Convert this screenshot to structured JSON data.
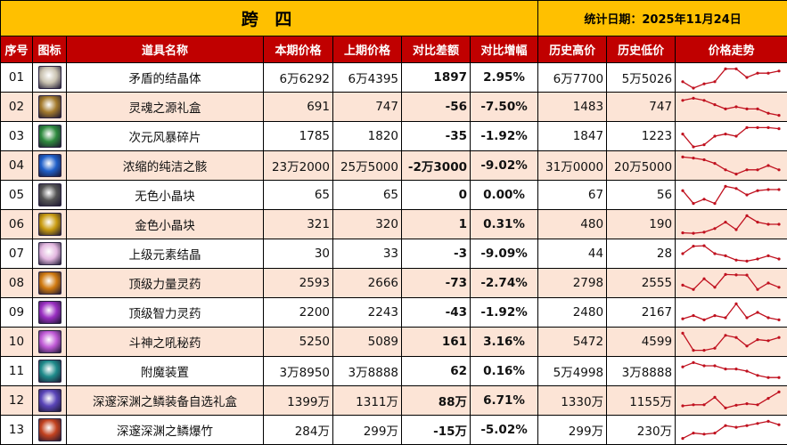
{
  "title": "跨 四",
  "stat_date": "统计日期：2025年11月24日",
  "columns": [
    "序号",
    "图标",
    "道具名称",
    "本期价格",
    "上期价格",
    "对比差额",
    "对比增幅",
    "历史高价",
    "历史低价",
    "价格走势"
  ],
  "colors": {
    "title_bg": "#FFC000",
    "header_bg": "#C00000",
    "alt_row_bg": "#FCE4D6",
    "up": "#E0201F",
    "down": "#1FA34A",
    "spark": "#C0111F"
  },
  "rows": [
    {
      "idx": "01",
      "icon": "crystal-icon",
      "icon_color": "#c9c2b0",
      "name": "矛盾的结晶体",
      "cur": "6万6292",
      "prev": "6万4395",
      "diff": "1897",
      "pct": "2.95%",
      "trend": "up",
      "high": "6万7700",
      "low": "5万5026",
      "spark": [
        7,
        10,
        8,
        7,
        1,
        1,
        5,
        3,
        3,
        2
      ]
    },
    {
      "idx": "02",
      "icon": "gift-box-icon",
      "icon_color": "#a37a2c",
      "name": "灵魂之源礼盒",
      "cur": "691",
      "prev": "747",
      "diff": "-56",
      "pct": "-7.50%",
      "trend": "down",
      "high": "1483",
      "low": "747",
      "spark": [
        2,
        1,
        2,
        4,
        6,
        5,
        6,
        6,
        8,
        9
      ]
    },
    {
      "idx": "03",
      "icon": "shard-icon",
      "icon_color": "#2e8a3e",
      "name": "次元风暴碎片",
      "cur": "1785",
      "prev": "1820",
      "diff": "-35",
      "pct": "-1.92%",
      "trend": "down",
      "high": "1847",
      "low": "1223",
      "spark": [
        4,
        10,
        9,
        5,
        4,
        5,
        1,
        1,
        1,
        1.5
      ]
    },
    {
      "idx": "04",
      "icon": "orb-icon",
      "icon_color": "#1f5fc9",
      "name": "浓缩的纯洁之骸",
      "cur": "23万2000",
      "prev": "25万5000",
      "diff": "-2万3000",
      "pct": "-9.02%",
      "trend": "down",
      "high": "31万0000",
      "low": "20万5000",
      "spark": [
        1,
        1.5,
        2.3,
        4,
        7,
        9,
        7,
        7,
        5,
        7
      ]
    },
    {
      "idx": "05",
      "icon": "gray-cube-icon",
      "icon_color": "#555555",
      "name": "无色小晶块",
      "cur": "65",
      "prev": "65",
      "diff": "0",
      "pct": "0.00%",
      "trend": "up",
      "high": "67",
      "low": "56",
      "spark": [
        3,
        9,
        7,
        9,
        1,
        2,
        5,
        3,
        2.5,
        2.5
      ]
    },
    {
      "idx": "06",
      "icon": "gold-cube-icon",
      "icon_color": "#c99b10",
      "name": "金色小晶块",
      "cur": "321",
      "prev": "320",
      "diff": "1",
      "pct": "0.31%",
      "trend": "up",
      "high": "480",
      "low": "190",
      "spark": [
        9,
        9.2,
        8.7,
        7,
        4,
        7.5,
        1,
        4,
        5,
        5
      ]
    },
    {
      "idx": "07",
      "icon": "element-crystal-icon",
      "icon_color": "#e3b7e0",
      "name": "上级元素结晶",
      "cur": "30",
      "prev": "33",
      "diff": "-3",
      "pct": "-9.09%",
      "trend": "down",
      "high": "44",
      "low": "28",
      "spark": [
        5,
        1.5,
        1.3,
        5,
        6,
        8,
        8.5,
        7.5,
        6,
        7.5
      ]
    },
    {
      "idx": "08",
      "icon": "strength-potion-icon",
      "icon_color": "#d07a10",
      "name": "顶级力量灵药",
      "cur": "2593",
      "prev": "2666",
      "diff": "-73",
      "pct": "-2.74%",
      "trend": "down",
      "high": "2798",
      "low": "2555",
      "spark": [
        6,
        8,
        3,
        7,
        1,
        1.2,
        1.3,
        8,
        5,
        7
      ]
    },
    {
      "idx": "09",
      "icon": "intellect-potion-icon",
      "icon_color": "#9a2fc2",
      "name": "顶级智力灵药",
      "cur": "2200",
      "prev": "2243",
      "diff": "-43",
      "pct": "-1.92%",
      "trend": "down",
      "high": "2480",
      "low": "2167",
      "spark": [
        8,
        6.5,
        8.5,
        6.5,
        7.5,
        1,
        7.5,
        5,
        7.5,
        8.5
      ]
    },
    {
      "idx": "10",
      "icon": "elixir-icon",
      "icon_color": "#c05ad6",
      "name": "斗神之吼秘药",
      "cur": "5250",
      "prev": "5089",
      "diff": "161",
      "pct": "3.16%",
      "trend": "up",
      "high": "5472",
      "low": "4599",
      "spark": [
        1,
        9,
        9,
        8,
        2,
        3,
        7,
        4,
        4.5,
        3
      ]
    },
    {
      "idx": "11",
      "icon": "enchant-device-icon",
      "icon_color": "#1f8b8b",
      "name": "附魔装置",
      "cur": "3万8950",
      "prev": "3万8888",
      "diff": "62",
      "pct": "0.16%",
      "trend": "up",
      "high": "5万4998",
      "low": "3万8888",
      "spark": [
        3,
        1,
        2.5,
        2.5,
        4,
        4,
        5,
        7,
        8,
        8
      ]
    },
    {
      "idx": "12",
      "icon": "abyss-gift-box-icon",
      "icon_color": "#5a45b8",
      "name": "深邃深渊之鳞装备自选礼盒",
      "cur": "1399万",
      "prev": "1311万",
      "diff": "88万",
      "pct": "6.71%",
      "trend": "up",
      "high": "1330万",
      "low": "1155万",
      "spark": [
        7.5,
        7,
        7,
        3.5,
        8.5,
        7.2,
        6.5,
        7,
        4,
        1
      ]
    },
    {
      "idx": "13",
      "icon": "firecracker-icon",
      "icon_color": "#c2421f",
      "name": "深邃深渊之鳞爆竹",
      "cur": "284万",
      "prev": "299万",
      "diff": "-15万",
      "pct": "-5.02%",
      "trend": "down",
      "high": "299万",
      "low": "230万",
      "spark": [
        9,
        6.5,
        7,
        6.5,
        3,
        3.8,
        3,
        2,
        1,
        2.6
      ]
    }
  ]
}
